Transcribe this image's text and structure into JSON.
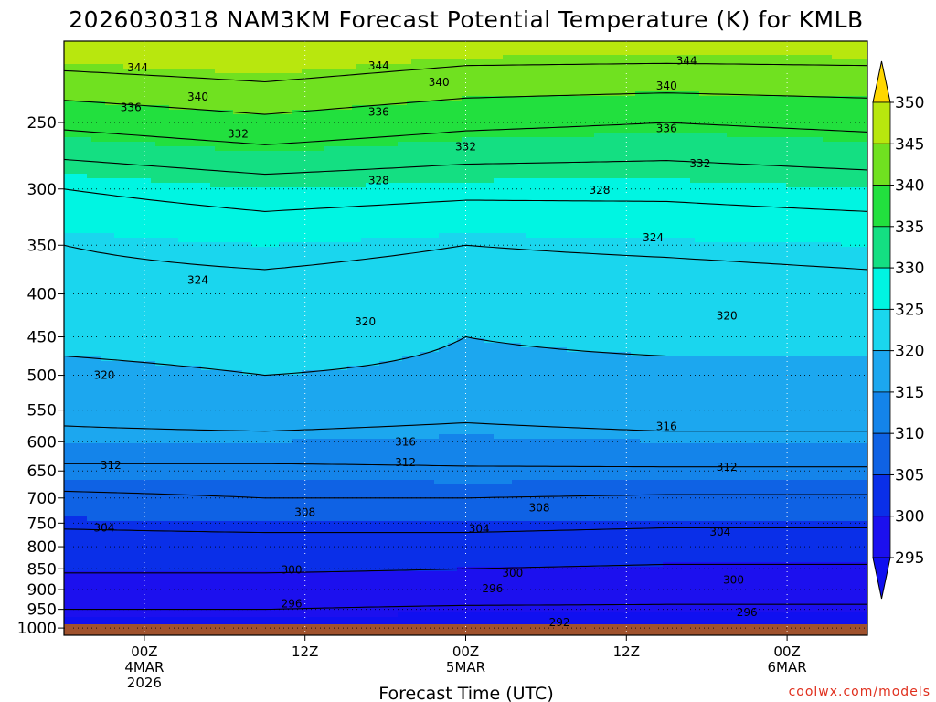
{
  "chart_data": {
    "type": "contour",
    "title": "2026030318 NAM3KM Forecast Potential Temperature (K) for KMLB",
    "xlabel": "Forecast Time (UTC)",
    "ylabel": "",
    "credit": "coolwx.com/models",
    "y_axis": {
      "scale": "log",
      "inverted": true,
      "range": [
        1020,
        200
      ],
      "ticks": [
        250,
        300,
        350,
        400,
        450,
        500,
        550,
        600,
        650,
        700,
        750,
        800,
        850,
        900,
        950,
        1000
      ]
    },
    "x_axis": {
      "range": [
        0,
        60
      ],
      "ticks": [
        {
          "x": 6,
          "lines": [
            "00Z",
            "4MAR",
            "2026"
          ]
        },
        {
          "x": 18,
          "lines": [
            "12Z"
          ]
        },
        {
          "x": 30,
          "lines": [
            "00Z",
            "5MAR"
          ]
        },
        {
          "x": 42,
          "lines": [
            "12Z"
          ]
        },
        {
          "x": 54,
          "lines": [
            "00Z",
            "6MAR"
          ]
        }
      ]
    },
    "grid": true,
    "colorbar": {
      "levels": [
        295,
        300,
        305,
        310,
        315,
        320,
        325,
        330,
        335,
        340,
        345,
        350
      ],
      "colors": [
        "#1c10ee",
        "#0a2fe8",
        "#0f62e4",
        "#1484ea",
        "#1ca7ef",
        "#1ad6ee",
        "#00f5e2",
        "#14df82",
        "#22e03e",
        "#70e120",
        "#b8e70e",
        "#ffff00"
      ],
      "under_color": "#1010f0",
      "over_color": "#ffd700"
    },
    "profiles": [
      {
        "x": 0,
        "p": [
          1000,
          950,
          900,
          850,
          800,
          750,
          700,
          650,
          600,
          550,
          500,
          450,
          400,
          350,
          300,
          250,
          200
        ],
        "theta": [
          294,
          296,
          298,
          300.5,
          302.5,
          304.5,
          307,
          311,
          315,
          317,
          319,
          321,
          323,
          324,
          328,
          337,
          348
        ]
      },
      {
        "x": 15,
        "p": [
          1000,
          950,
          900,
          850,
          800,
          750,
          700,
          650,
          600,
          550,
          500,
          450,
          400,
          350,
          300,
          250,
          200
        ],
        "theta": [
          294,
          296,
          298,
          300.5,
          302.5,
          305,
          308,
          311,
          315,
          318,
          320,
          321.5,
          323,
          325,
          330,
          339,
          349
        ]
      },
      {
        "x": 30,
        "p": [
          1000,
          950,
          900,
          850,
          800,
          750,
          700,
          650,
          600,
          550,
          500,
          450,
          400,
          350,
          300,
          250,
          200
        ],
        "theta": [
          293,
          295.5,
          298,
          300,
          302.5,
          305,
          308,
          311.5,
          314.5,
          317,
          319.5,
          320,
          322.5,
          324,
          329,
          337,
          347
        ]
      },
      {
        "x": 45,
        "p": [
          1000,
          950,
          900,
          850,
          800,
          750,
          700,
          650,
          600,
          550,
          500,
          450,
          400,
          350,
          300,
          250,
          200
        ],
        "theta": [
          293,
          295.5,
          297.5,
          299.5,
          302,
          304.5,
          307.5,
          311.5,
          315,
          318,
          319.5,
          320.5,
          322.5,
          324.5,
          329,
          336,
          347
        ]
      },
      {
        "x": 60,
        "p": [
          1000,
          950,
          900,
          850,
          800,
          750,
          700,
          650,
          600,
          550,
          500,
          450,
          400,
          350,
          300,
          250,
          200
        ],
        "theta": [
          293,
          295.5,
          297.5,
          299.5,
          302,
          304.5,
          307.5,
          311.5,
          315,
          318,
          319.5,
          320.5,
          323,
          325,
          330,
          337,
          347
        ]
      }
    ],
    "contour_lines": [
      292,
      296,
      300,
      304,
      308,
      312,
      316,
      320,
      324,
      328,
      332,
      336,
      340,
      344
    ],
    "contour_labels": [
      {
        "value": "344",
        "x": 5.5,
        "p": 215
      },
      {
        "value": "344",
        "x": 23.5,
        "p": 214
      },
      {
        "value": "344",
        "x": 46.5,
        "p": 211
      },
      {
        "value": "340",
        "x": 10,
        "p": 233
      },
      {
        "value": "340",
        "x": 28,
        "p": 224
      },
      {
        "value": "340",
        "x": 45,
        "p": 226
      },
      {
        "value": "336",
        "x": 5,
        "p": 240
      },
      {
        "value": "336",
        "x": 23.5,
        "p": 243
      },
      {
        "value": "336",
        "x": 45,
        "p": 254
      },
      {
        "value": "332",
        "x": 13,
        "p": 258
      },
      {
        "value": "332",
        "x": 30,
        "p": 267
      },
      {
        "value": "332",
        "x": 47.5,
        "p": 280
      },
      {
        "value": "328",
        "x": 23.5,
        "p": 293
      },
      {
        "value": "328",
        "x": 40,
        "p": 301
      },
      {
        "value": "324",
        "x": 10,
        "p": 385
      },
      {
        "value": "324",
        "x": 44,
        "p": 343
      },
      {
        "value": "320",
        "x": 3,
        "p": 500
      },
      {
        "value": "320",
        "x": 22.5,
        "p": 432
      },
      {
        "value": "320",
        "x": 49.5,
        "p": 425
      },
      {
        "value": "316",
        "x": 25.5,
        "p": 600
      },
      {
        "value": "316",
        "x": 45,
        "p": 575
      },
      {
        "value": "312",
        "x": 3.5,
        "p": 640
      },
      {
        "value": "312",
        "x": 25.5,
        "p": 635
      },
      {
        "value": "312",
        "x": 49.5,
        "p": 643
      },
      {
        "value": "308",
        "x": 18,
        "p": 728
      },
      {
        "value": "308",
        "x": 35.5,
        "p": 719
      },
      {
        "value": "304",
        "x": 3,
        "p": 760
      },
      {
        "value": "304",
        "x": 31,
        "p": 762
      },
      {
        "value": "304",
        "x": 49,
        "p": 768
      },
      {
        "value": "300",
        "x": 17,
        "p": 853
      },
      {
        "value": "300",
        "x": 33.5,
        "p": 860
      },
      {
        "value": "300",
        "x": 50,
        "p": 877
      },
      {
        "value": "296",
        "x": 17,
        "p": 935
      },
      {
        "value": "296",
        "x": 32,
        "p": 898
      },
      {
        "value": "296",
        "x": 51,
        "p": 958
      },
      {
        "value": "292",
        "x": 37,
        "p": 985
      }
    ]
  }
}
